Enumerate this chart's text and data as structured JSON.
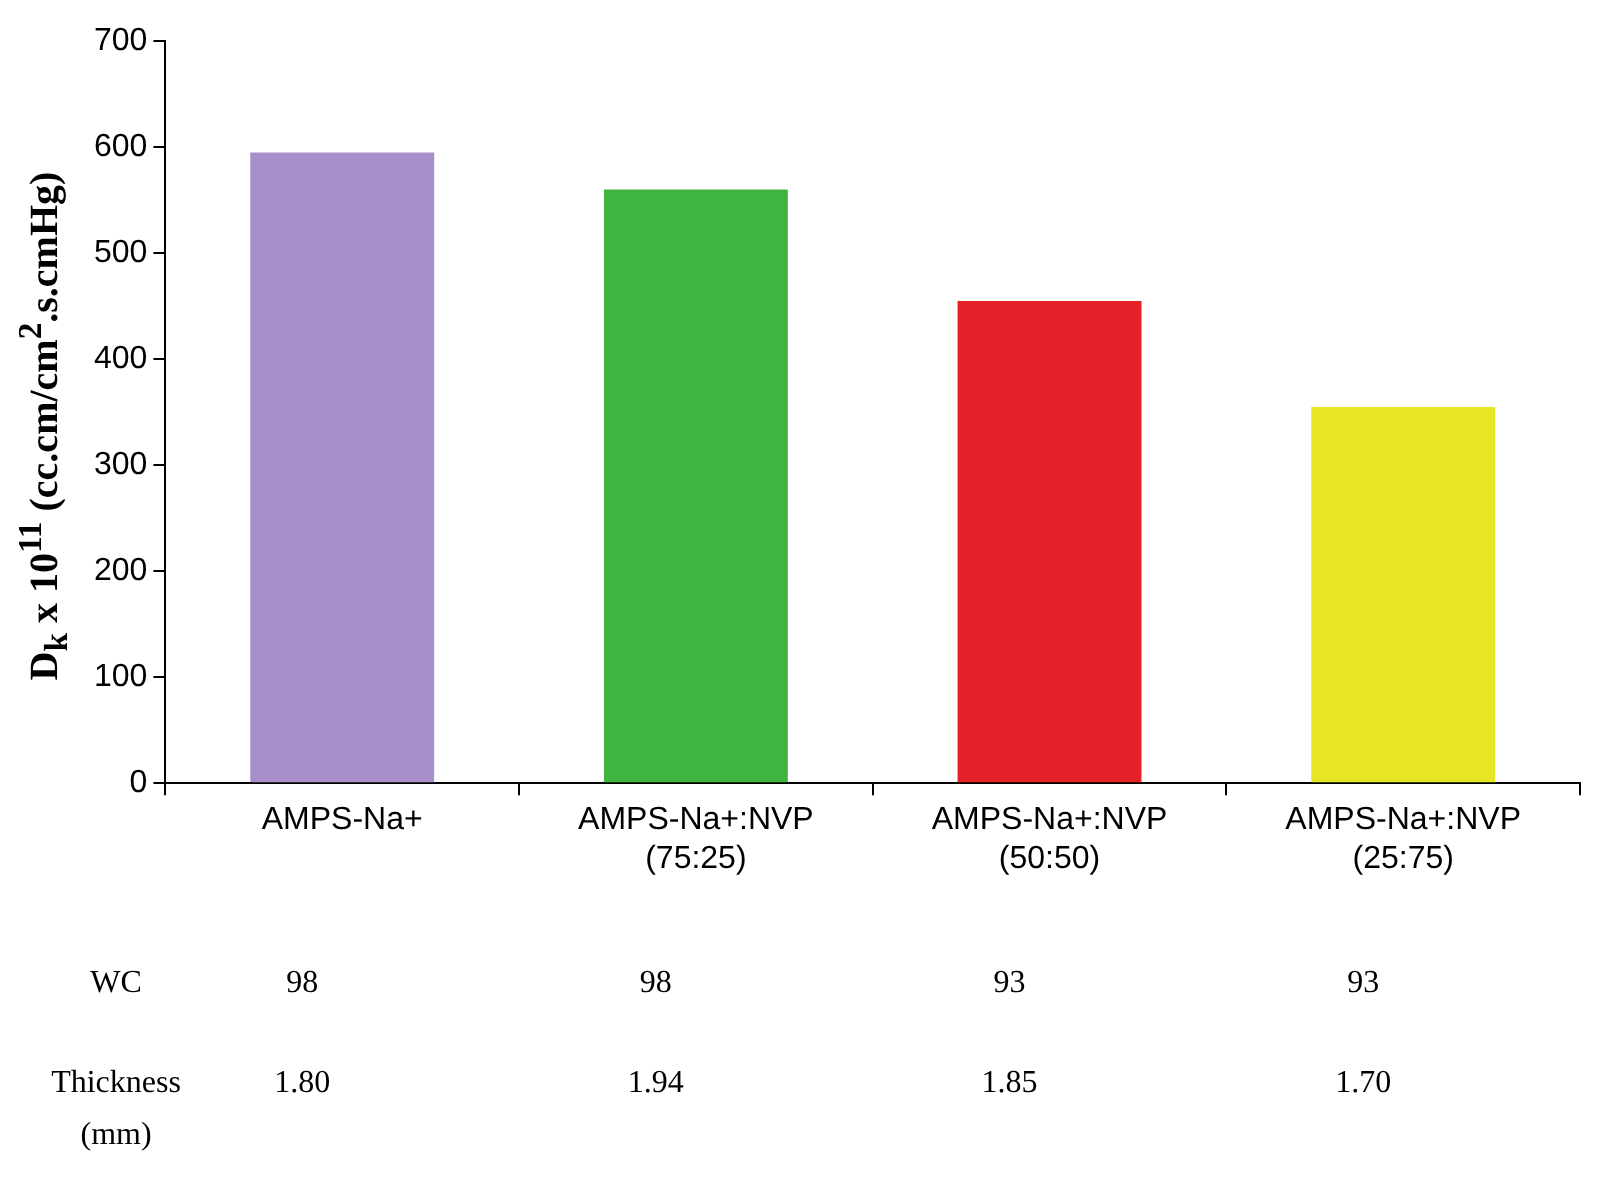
{
  "chart_data": {
    "type": "bar",
    "ylabel": "D$_{k}$ x 10$^{11}$ (cc.cm/cm$^{2}$.s.cmHg)",
    "categories": [
      "AMPS-Na+",
      "AMPS-Na+:NVP (75:25)",
      "AMPS-Na+:NVP (50:50)",
      "AMPS-Na+:NVP (25:75)"
    ],
    "values": [
      595,
      560,
      455,
      355
    ],
    "colors": [
      "#a98fca",
      "#3fb53f",
      "#e62028",
      "#e6e625"
    ],
    "ylim": [
      0,
      700
    ],
    "yticks": [
      0,
      100,
      200,
      300,
      400,
      500,
      600,
      700
    ],
    "grid": false,
    "legend": false,
    "annotations": [
      "WC",
      "98",
      "98",
      "93",
      "93",
      "Thickness (mm)",
      "1.80",
      "1.94",
      "1.85",
      "1.70"
    ]
  }
}
